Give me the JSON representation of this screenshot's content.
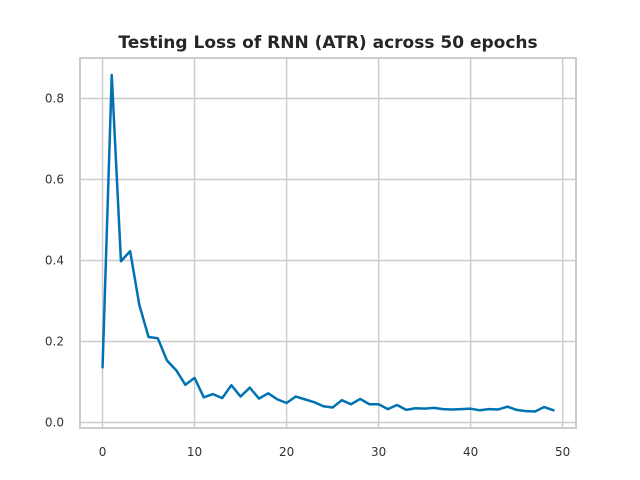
{
  "chart_data": {
    "type": "line",
    "title": "Testing Loss of RNN (ATR) across 50 epochs",
    "xlabel": "",
    "ylabel": "",
    "xlim": [
      -2.45,
      51.45
    ],
    "ylim": [
      -0.0137,
      0.8999
    ],
    "xticks": [
      0,
      10,
      20,
      30,
      40,
      50
    ],
    "yticks": [
      0.0,
      0.2,
      0.4,
      0.6,
      0.8
    ],
    "xtick_labels": [
      "0",
      "10",
      "20",
      "30",
      "40",
      "50"
    ],
    "ytick_labels": [
      "0.0",
      "0.2",
      "0.4",
      "0.6",
      "0.8"
    ],
    "grid": true,
    "legend": null,
    "series": [
      {
        "color": "#0072b2",
        "x": [
          0,
          1,
          2,
          3,
          4,
          5,
          6,
          7,
          8,
          9,
          10,
          11,
          12,
          13,
          14,
          15,
          16,
          17,
          18,
          19,
          20,
          21,
          22,
          23,
          24,
          25,
          26,
          27,
          28,
          29,
          30,
          31,
          32,
          33,
          34,
          35,
          36,
          37,
          38,
          39,
          40,
          41,
          42,
          43,
          44,
          45,
          46,
          47,
          48,
          49
        ],
        "y": [
          0.136,
          0.858,
          0.398,
          0.423,
          0.29,
          0.211,
          0.208,
          0.153,
          0.129,
          0.093,
          0.11,
          0.062,
          0.07,
          0.06,
          0.092,
          0.064,
          0.086,
          0.059,
          0.072,
          0.057,
          0.048,
          0.064,
          0.057,
          0.05,
          0.04,
          0.037,
          0.055,
          0.045,
          0.058,
          0.045,
          0.045,
          0.033,
          0.043,
          0.031,
          0.035,
          0.034,
          0.036,
          0.033,
          0.032,
          0.033,
          0.034,
          0.03,
          0.033,
          0.032,
          0.039,
          0.031,
          0.028,
          0.027,
          0.038,
          0.03
        ]
      }
    ]
  }
}
